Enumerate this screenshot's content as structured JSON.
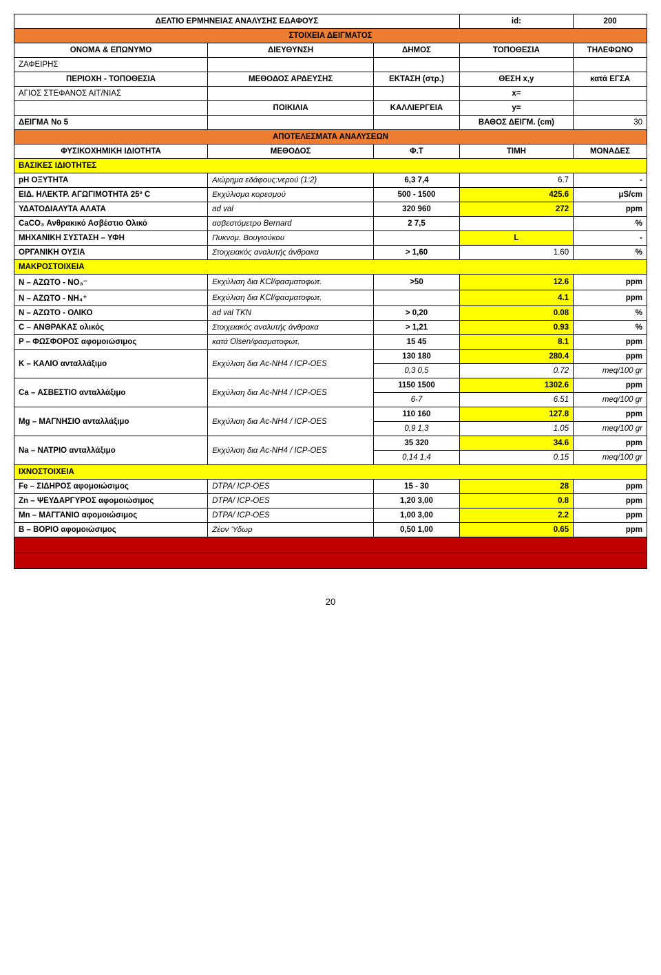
{
  "header": {
    "title": "ΔΕΛΤΙΟ ΕΡΜΗΝΕΙΑΣ ΑΝΑΛΥΣΗΣ ΕΔΑΦΟΥΣ",
    "id_label": "id:",
    "id_value": "200",
    "sample_section": "ΣΤΟΙΧΕΙΑ ΔΕΙΓΜΑΤΟΣ",
    "name_label": "ΟΝΟΜΑ & ΕΠΩΝΥΜΟ",
    "address_label": "ΔΙΕΥΘΥΝΣΗ",
    "municipality_label": "ΔΗΜΟΣ",
    "location_label": "ΤΟΠΟΘΕΣΙΑ",
    "phone_label": "ΤΗΛΕΦΩΝΟ",
    "name_value": "ΖΑΦΕΙΡΗΣ",
    "region_label": "ΠΕΡΙΟΧΗ - ΤΟΠΟΘΕΣΙΑ",
    "irrigation_label": "ΜΕΘΟΔΟΣ ΑΡΔΕΥΣΗΣ",
    "area_label": "ΕΚΤΑΣΗ (στρ.)",
    "position_label": "ΘΕΣΗ x,y",
    "egsa_label": "κατά ΕΓΣΑ",
    "region_value": "ΑΓΙΟΣ ΣΤΕΦΑΝΟΣ ΑΙΤ/ΝΙΑΣ",
    "x_label": "x=",
    "variety_label": "ΠΟΙΚΙΛΙΑ",
    "cultivation_label": "ΚΑΛΛΙΕΡΓΕΙΑ",
    "y_label": "y=",
    "sample_no_label": "ΔΕΙΓΜΑ Νο 5",
    "depth_label": "ΒΑΘΟΣ ΔΕΙΓΜ. (cm)",
    "depth_value": "30",
    "results_section": "ΑΠΟΤΕΛΕΣΜΑΤΑ ΑΝΑΛΥΣΕΩΝ",
    "property_label": "ΦΥΣΙΚΟΧΗΜΙΚΗ ΙΔΙΟΤΗΤΑ",
    "method_label": "ΜΕΘΟΔΟΣ",
    "ft_label": "Φ.Τ",
    "value_label": "ΤΙΜΗ",
    "units_label": "ΜΟΝΑΔΕΣ"
  },
  "sections": {
    "basic": "ΒΑΣΙΚΕΣ ΙΔΙΟΤΗΤΕΣ",
    "macro": "ΜΑΚΡΟΣΤΟΙΧΕΙΑ",
    "micro": "ΙΧΝΟΣΤΟΙΧΕΙΑ"
  },
  "rows": {
    "ph": {
      "prop": "pH ΟΞΥΤΗΤΑ",
      "method": "Αιώρημα εδάφους:νερού (1:2)",
      "ft": "6,3 7,4",
      "val": "6.7",
      "unit": "-"
    },
    "ec": {
      "prop": "ΕΙΔ. ΗΛΕΚΤΡ. ΑΓΩΓΙΜΟΤΗΤΑ 25º C",
      "method": "Εκχύλισμα κορεσμού",
      "ft": "500 - 1500",
      "val": "425.6",
      "unit": "μS/cm"
    },
    "salts": {
      "prop": "ΥΔΑΤΟΔΙΑΛΥΤΑ ΑΛΑΤΑ",
      "method": "ad val",
      "ft": "320 960",
      "val": "272",
      "unit": "ppm"
    },
    "caco3": {
      "prop": "CaCO₃ Ανθρακικό Ασβέστιο Ολικό",
      "method": "ασβεστόμετρο Bernard",
      "ft": "2 7,5",
      "val": "",
      "unit": "%"
    },
    "texture": {
      "prop": "ΜΗΧΑΝΙΚΗ ΣΥΣΤΑΣΗ – ΥΦΗ",
      "method": "Πυκνομ. Βουγιούκου",
      "ft": "",
      "val": "L",
      "unit": "-"
    },
    "organic": {
      "prop": "ΟΡΓΑΝΙΚΗ ΟΥΣΙΑ",
      "method": "Στοιχειακός αναλυτής άνθρακα",
      "ft": "> 1,60",
      "val": "1.60",
      "unit": "%"
    },
    "no3": {
      "prop": "Ν – ΑΖΩΤΟ - ΝΟ₃⁻",
      "method": "Εκχύλιση δια KCl/φασματοφωτ.",
      "ft": ">50",
      "val": "12.6",
      "unit": "ppm"
    },
    "nh4": {
      "prop": "Ν – ΑΖΩΤΟ - ΝΗ₄⁺",
      "method": "Εκχύλιση δια KCl/φασματοφωτ.",
      "ft": "",
      "val": "4.1",
      "unit": "ppm"
    },
    "ntotal": {
      "prop": "Ν – ΑΖΩΤΟ - ΟΛΙΚΟ",
      "method": "ad val TKN",
      "ft": "> 0,20",
      "val": "0.08",
      "unit": "%"
    },
    "carbon": {
      "prop": "C – ΑΝΘΡΑΚΑΣ     ολικός",
      "method": "Στοιχειακός αναλυτής άνθρακα",
      "ft": "> 1,21",
      "val": "0.93",
      "unit": "%"
    },
    "p": {
      "prop": "P – ΦΩΣΦΟΡΟΣ    αφομοιώσιμος",
      "method": "κατά Olsen/φασματοφωτ.",
      "ft": "15 45",
      "val": "8.1",
      "unit": "ppm"
    },
    "k1": {
      "prop": "K – ΚΑΛΙΟ ανταλλάξιμο",
      "method": "Εκχύλιση δια Ac-NH4 / ICP-OES",
      "ft": "130 180",
      "val": "280.4",
      "unit": "ppm"
    },
    "k2": {
      "prop": "",
      "method": "",
      "ft": "0,3 0,5",
      "val": "0.72",
      "unit": "meq/100 gr"
    },
    "ca1": {
      "prop": "Ca – ΑΣΒΕΣΤΙΟ ανταλλάξιμο",
      "method": "Εκχύλιση δια Ac-NH4 / ICP-OES",
      "ft": "1150 1500",
      "val": "1302.6",
      "unit": "ppm"
    },
    "ca2": {
      "prop": "",
      "method": "",
      "ft": "6-7",
      "val": "6.51",
      "unit": "meq/100 gr"
    },
    "mg1": {
      "prop": "Mg – ΜΑΓΝΗΣΙΟ ανταλλάξιμο",
      "method": "Εκχύλιση δια Ac-NH4 / ICP-OES",
      "ft": "110 160",
      "val": "127.8",
      "unit": "ppm"
    },
    "mg2": {
      "prop": "",
      "method": "",
      "ft": "0,9 1,3",
      "val": "1.05",
      "unit": "meq/100 gr"
    },
    "na1": {
      "prop": "Na – NATPIO ανταλλάξιμο",
      "method": "Εκχύλιση δια Ac-NH4 / ICP-OES",
      "ft": "35 320",
      "val": "34.6",
      "unit": "ppm"
    },
    "na2": {
      "prop": "",
      "method": "",
      "ft": "0,14 1,4",
      "val": "0.15",
      "unit": "meq/100 gr"
    },
    "fe": {
      "prop": "Fe – ΣΙΔΗΡΟΣ αφομοιώσιμος",
      "method": "DTPA/ ICP-OES",
      "ft": "15 - 30",
      "val": "28",
      "unit": "ppm"
    },
    "zn": {
      "prop": "Zn – ΨΕΥΔΑΡΓΥΡΟΣ αφομοιώσιμος",
      "method": "DTPA/ ICP-OES",
      "ft": "1,20 3,00",
      "val": "0.8",
      "unit": "ppm"
    },
    "mn": {
      "prop": "Mn – ΜΑΓΓΑΝΙΟ αφομοιώσιμος",
      "method": "DTPA/ ICP-OES",
      "ft": "1,00 3,00",
      "val": "2.2",
      "unit": "ppm"
    },
    "b": {
      "prop": "B – ΒΟΡΙΟ αφομοιώσιμος",
      "method": "Ζέον Ύδωρ",
      "ft": "0,50 1,00",
      "val": "0.65",
      "unit": "ppm"
    }
  },
  "page_number": "20"
}
